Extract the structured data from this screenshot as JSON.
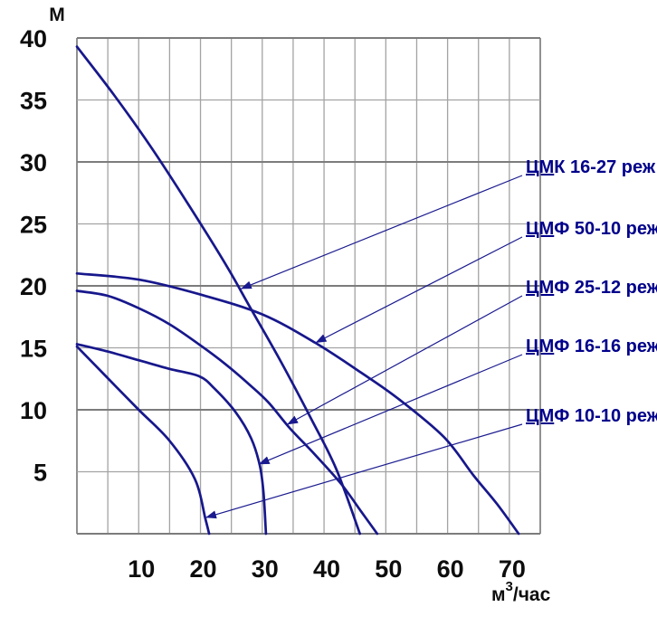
{
  "page": {
    "background": "#ffffff"
  },
  "colors": {
    "curve": "#17178C",
    "series_label_text": "#00008B",
    "leader_line": "#1A1A8F",
    "grid_minor": "#A3A3A3",
    "grid_major": "#7C7C7C",
    "axis_text": "#0D0D0D"
  },
  "chart_data": {
    "type": "line",
    "title": "",
    "x_axis": {
      "unit_base": "м",
      "unit_sup": "3",
      "unit_rest": "/час",
      "ticks": [
        10,
        20,
        30,
        40,
        50,
        60,
        70
      ],
      "range": [
        0,
        75
      ],
      "gridline_step": 5
    },
    "y_axis": {
      "unit": "М",
      "ticks": [
        40,
        35,
        30,
        25,
        20,
        15,
        10,
        5
      ],
      "range": [
        0,
        40
      ],
      "gridline_step": 5
    },
    "grid": true,
    "legend_position": "right-labels-with-leader-arrows",
    "series": [
      {
        "name": "ЦМК 16-27 реж",
        "label_underlined": "ЦМ",
        "label_rest": "К 16-27 реж",
        "points": [
          [
            0,
            39.3
          ],
          [
            6,
            35.4
          ],
          [
            12,
            31.2
          ],
          [
            18,
            26.6
          ],
          [
            24,
            21.8
          ],
          [
            28,
            18.3
          ],
          [
            33,
            13.9
          ],
          [
            38,
            9.2
          ],
          [
            42,
            5.2
          ],
          [
            45.8,
            0
          ]
        ],
        "arrow_point": [
          26.5,
          19.75
        ]
      },
      {
        "name": "ЦМФ 50-10 реж",
        "label_underlined": "ЦМ",
        "label_rest": "Ф 50-10 реж",
        "points": [
          [
            0,
            21
          ],
          [
            10,
            20.5
          ],
          [
            20,
            19.3
          ],
          [
            30,
            17.7
          ],
          [
            38.6,
            15.4
          ],
          [
            46,
            13.0
          ],
          [
            52,
            10.9
          ],
          [
            59.4,
            7.8
          ],
          [
            64.2,
            4.7
          ],
          [
            68,
            2.4
          ],
          [
            71.5,
            0
          ]
        ],
        "arrow_point": [
          38.6,
          15.4
        ]
      },
      {
        "name": "ЦМФ 25-12 реж",
        "label_underlined": "ЦМ",
        "label_rest": "Ф 25-12 реж",
        "points": [
          [
            0,
            19.6
          ],
          [
            5,
            19.2
          ],
          [
            10,
            18.2
          ],
          [
            15,
            16.9
          ],
          [
            20,
            15.2
          ],
          [
            24,
            13.7
          ],
          [
            28,
            12.0
          ],
          [
            31,
            10.6
          ],
          [
            34.5,
            8.5
          ],
          [
            38.5,
            6.4
          ],
          [
            42.8,
            4.0
          ],
          [
            46,
            1.8
          ],
          [
            48.6,
            0
          ]
        ],
        "arrow_point": [
          34.0,
          8.8
        ]
      },
      {
        "name": "ЦМФ 16-16 реж",
        "label_underlined": "ЦМ",
        "label_rest": "Ф 16-16 реж",
        "points": [
          [
            0,
            15.3
          ],
          [
            5,
            14.7
          ],
          [
            10,
            14.0
          ],
          [
            15,
            13.3
          ],
          [
            19.8,
            12.7
          ],
          [
            22.3,
            11.7
          ],
          [
            25.7,
            9.8
          ],
          [
            28.2,
            7.7
          ],
          [
            29.6,
            5.5
          ],
          [
            30.2,
            3.3
          ],
          [
            30.6,
            0
          ]
        ],
        "arrow_point": [
          29.4,
          5.6
        ]
      },
      {
        "name": "ЦМФ 10-10 реж",
        "label_underlined": "ЦМ",
        "label_rest": "Ф 10-10 реж",
        "points": [
          [
            0,
            15.1
          ],
          [
            4.7,
            12.7
          ],
          [
            10,
            10.0
          ],
          [
            15,
            7.5
          ],
          [
            19.1,
            4.4
          ],
          [
            20.8,
            1.2
          ],
          [
            21.4,
            0
          ]
        ],
        "arrow_point": [
          20.8,
          1.3
        ]
      }
    ]
  }
}
